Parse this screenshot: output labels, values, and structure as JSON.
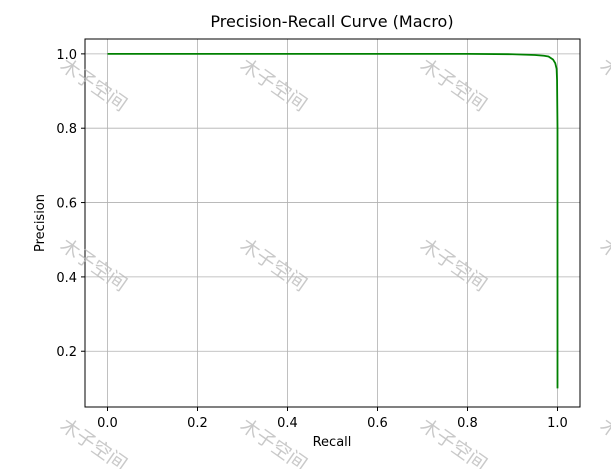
{
  "chart_data": {
    "type": "line",
    "title": "Precision-Recall Curve (Macro)",
    "xlabel": "Recall",
    "ylabel": "Precision",
    "xlim": [
      -0.05,
      1.05
    ],
    "ylim": [
      0.05,
      1.04
    ],
    "x_ticks": [
      0.0,
      0.2,
      0.4,
      0.6,
      0.8,
      1.0
    ],
    "x_tick_labels": [
      "0.0",
      "0.2",
      "0.4",
      "0.6",
      "0.8",
      "1.0"
    ],
    "y_ticks": [
      0.2,
      0.4,
      0.6,
      0.8,
      1.0
    ],
    "y_tick_labels": [
      "0.2",
      "0.4",
      "0.6",
      "0.8",
      "1.0"
    ],
    "grid": true,
    "series": [
      {
        "color": "#008000",
        "x": [
          0.0,
          0.2,
          0.4,
          0.6,
          0.8,
          0.9,
          0.95,
          0.97,
          0.98,
          0.99,
          0.995,
          0.998,
          0.999,
          1.0,
          1.0,
          1.0
        ],
        "y": [
          1.0,
          1.0,
          1.0,
          1.0,
          1.0,
          0.999,
          0.997,
          0.995,
          0.993,
          0.985,
          0.975,
          0.96,
          0.93,
          0.8,
          0.5,
          0.1
        ]
      }
    ]
  },
  "watermark": {
    "text": "木子空间"
  }
}
